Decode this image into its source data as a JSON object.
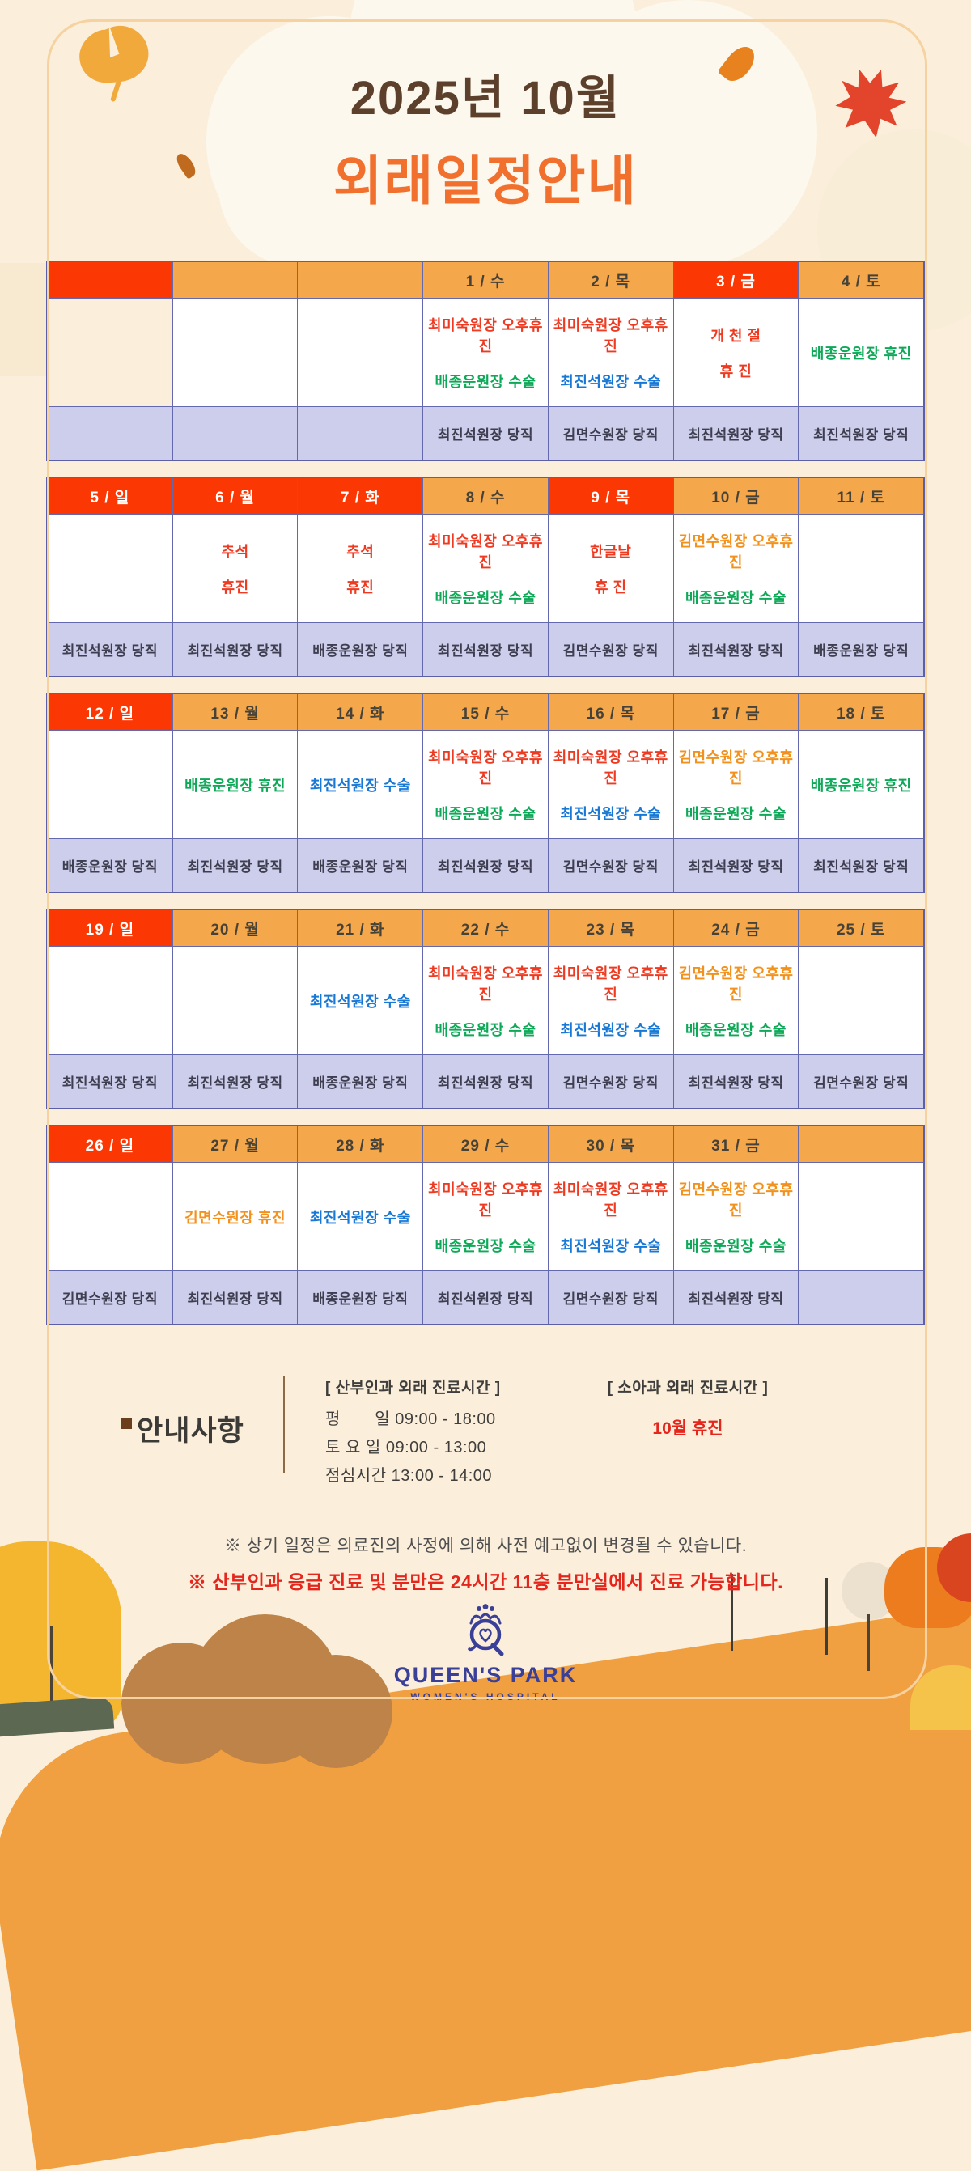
{
  "title": {
    "line1": "2025년 10월",
    "line2": "외래일정안내"
  },
  "calendar": {
    "weeks": [
      [
        {
          "label": "",
          "holiday": true,
          "outside": true,
          "lines": [],
          "duty": ""
        },
        {
          "label": "",
          "lines": [],
          "duty": ""
        },
        {
          "label": "",
          "lines": [],
          "duty": ""
        },
        {
          "label": "1 / 수",
          "lines": [
            {
              "text": "최미숙원장 오후휴진",
              "color": "red"
            },
            {
              "text": "배종운원장 수술",
              "color": "green"
            }
          ],
          "duty": "최진석원장 당직"
        },
        {
          "label": "2 / 목",
          "lines": [
            {
              "text": "최미숙원장 오후휴진",
              "color": "red"
            },
            {
              "text": "최진석원장 수술",
              "color": "blue"
            }
          ],
          "duty": "김면수원장 당직"
        },
        {
          "label": "3 / 금",
          "holiday": true,
          "lines": [
            {
              "text": "개 천 절",
              "color": "red"
            },
            {
              "text": "휴 진",
              "color": "red"
            }
          ],
          "duty": "최진석원장 당직"
        },
        {
          "label": "4 / 토",
          "lines": [
            {
              "text": "배종운원장 휴진",
              "color": "green"
            }
          ],
          "duty": "최진석원장 당직"
        }
      ],
      [
        {
          "label": "5 / 일",
          "holiday": true,
          "lines": [],
          "duty": "최진석원장 당직"
        },
        {
          "label": "6 / 월",
          "holiday": true,
          "lines": [
            {
              "text": "추석",
              "color": "red"
            },
            {
              "text": "휴진",
              "color": "red"
            }
          ],
          "duty": "최진석원장 당직"
        },
        {
          "label": "7 / 화",
          "holiday": true,
          "lines": [
            {
              "text": "추석",
              "color": "red"
            },
            {
              "text": "휴진",
              "color": "red"
            }
          ],
          "duty": "배종운원장 당직"
        },
        {
          "label": "8 / 수",
          "lines": [
            {
              "text": "최미숙원장 오후휴진",
              "color": "red"
            },
            {
              "text": "배종운원장 수술",
              "color": "green"
            }
          ],
          "duty": "최진석원장 당직"
        },
        {
          "label": "9 / 목",
          "holiday": true,
          "lines": [
            {
              "text": "한글날",
              "color": "red"
            },
            {
              "text": "휴 진",
              "color": "red"
            }
          ],
          "duty": "김면수원장 당직"
        },
        {
          "label": "10 / 금",
          "lines": [
            {
              "text": "김면수원장 오후휴진",
              "color": "orange"
            },
            {
              "text": "배종운원장 수술",
              "color": "green"
            }
          ],
          "duty": "최진석원장 당직"
        },
        {
          "label": "11 / 토",
          "lines": [],
          "duty": "배종운원장 당직"
        }
      ],
      [
        {
          "label": "12 / 일",
          "holiday": true,
          "lines": [],
          "duty": "배종운원장 당직"
        },
        {
          "label": "13 / 월",
          "lines": [
            {
              "text": "배종운원장 휴진",
              "color": "green"
            }
          ],
          "duty": "최진석원장 당직"
        },
        {
          "label": "14 / 화",
          "lines": [
            {
              "text": "최진석원장 수술",
              "color": "blue"
            }
          ],
          "duty": "배종운원장 당직"
        },
        {
          "label": "15 / 수",
          "lines": [
            {
              "text": "최미숙원장 오후휴진",
              "color": "red"
            },
            {
              "text": "배종운원장 수술",
              "color": "green"
            }
          ],
          "duty": "최진석원장 당직"
        },
        {
          "label": "16 / 목",
          "lines": [
            {
              "text": "최미숙원장 오후휴진",
              "color": "red"
            },
            {
              "text": "최진석원장 수술",
              "color": "blue"
            }
          ],
          "duty": "김면수원장 당직"
        },
        {
          "label": "17 / 금",
          "lines": [
            {
              "text": "김면수원장 오후휴진",
              "color": "orange"
            },
            {
              "text": "배종운원장 수술",
              "color": "green"
            }
          ],
          "duty": "최진석원장 당직"
        },
        {
          "label": "18 / 토",
          "lines": [
            {
              "text": "배종운원장 휴진",
              "color": "green"
            }
          ],
          "duty": "최진석원장 당직"
        }
      ],
      [
        {
          "label": "19 / 일",
          "holiday": true,
          "lines": [],
          "duty": "최진석원장 당직"
        },
        {
          "label": "20 / 월",
          "lines": [],
          "duty": "최진석원장 당직"
        },
        {
          "label": "21 / 화",
          "lines": [
            {
              "text": "최진석원장 수술",
              "color": "blue"
            }
          ],
          "duty": "배종운원장 당직"
        },
        {
          "label": "22 / 수",
          "lines": [
            {
              "text": "최미숙원장 오후휴진",
              "color": "red"
            },
            {
              "text": "배종운원장 수술",
              "color": "green"
            }
          ],
          "duty": "최진석원장 당직"
        },
        {
          "label": "23 / 목",
          "lines": [
            {
              "text": "최미숙원장 오후휴진",
              "color": "red"
            },
            {
              "text": "최진석원장 수술",
              "color": "blue"
            }
          ],
          "duty": "김면수원장 당직"
        },
        {
          "label": "24 / 금",
          "lines": [
            {
              "text": "김면수원장 오후휴진",
              "color": "orange"
            },
            {
              "text": "배종운원장 수술",
              "color": "green"
            }
          ],
          "duty": "최진석원장 당직"
        },
        {
          "label": "25 / 토",
          "lines": [],
          "duty": "김면수원장 당직"
        }
      ],
      [
        {
          "label": "26 / 일",
          "holiday": true,
          "lines": [],
          "duty": "김면수원장 당직"
        },
        {
          "label": "27 / 월",
          "lines": [
            {
              "text": "김면수원장 휴진",
              "color": "orange"
            }
          ],
          "duty": "최진석원장 당직"
        },
        {
          "label": "28 / 화",
          "lines": [
            {
              "text": "최진석원장 수술",
              "color": "blue"
            }
          ],
          "duty": "배종운원장 당직"
        },
        {
          "label": "29 / 수",
          "lines": [
            {
              "text": "최미숙원장 오후휴진",
              "color": "red"
            },
            {
              "text": "배종운원장 수술",
              "color": "green"
            }
          ],
          "duty": "최진석원장 당직"
        },
        {
          "label": "30 / 목",
          "lines": [
            {
              "text": "최미숙원장 오후휴진",
              "color": "red"
            },
            {
              "text": "최진석원장 수술",
              "color": "blue"
            }
          ],
          "duty": "김면수원장 당직"
        },
        {
          "label": "31 / 금",
          "lines": [
            {
              "text": "김면수원장 오후휴진",
              "color": "orange"
            },
            {
              "text": "배종운원장 수술",
              "color": "green"
            }
          ],
          "duty": "최진석원장 당직"
        },
        {
          "label": "",
          "lines": [],
          "duty": ""
        }
      ]
    ]
  },
  "notice": {
    "heading": "안내사항",
    "ob": {
      "header": "[ 산부인과 외래 진료시간 ]",
      "rows": [
        "평       일 09:00 - 18:00",
        "토 요 일 09:00 - 13:00",
        "점심시간 13:00 - 14:00"
      ]
    },
    "ped": {
      "header": "[ 소아과 외래 진료시간 ]",
      "status": "10월 휴진"
    }
  },
  "notes": {
    "line1": "※ 상기 일정은 의료진의 사정에 의해 사전 예고없이 변경될 수 있습니다.",
    "line2": "※ 산부인과 응급 진료 및 분만은 24시간 11층 분만실에서 진료 가능합니다."
  },
  "logo": {
    "name": "QUEEN'S PARK",
    "sub": "WOMEN'S HOSPITAL"
  },
  "colors": {
    "page_bg": "#FBEFDB",
    "header_orange": "#F5A74B",
    "holiday_red": "#FB3703",
    "day_text": "#474238",
    "duty_bg": "#CDCEEC",
    "duty_text": "#3E3E50",
    "grid_line": "#6468AE",
    "text_red": "#EF3A22",
    "text_green": "#0EA958",
    "text_blue": "#1878D5",
    "text_orange": "#F2911C",
    "title_brown": "#5C402C",
    "title_orange": "#F2702E",
    "note_red": "#E5261D",
    "logo_navy": "#3A3F97"
  }
}
